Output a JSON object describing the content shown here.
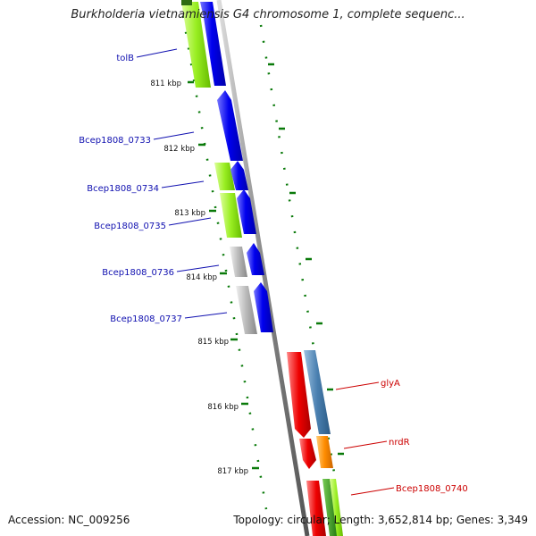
{
  "map": {
    "title": "Burkholderia vietnamiensis G4 chromosome 1, complete sequenc...",
    "accession_text": "Accession: NC_009256",
    "topology_text": "Topology: circular; Length: 3,652,814 bp; Genes: 3,349",
    "tick_labels": [
      "811 kbp",
      "812 kbp",
      "813 kbp",
      "814 kbp",
      "815 kbp",
      "816 kbp",
      "817 kbp"
    ],
    "left_gene_labels": [
      "tolB",
      "Bcep1808_0733",
      "Bcep1808_0734",
      "Bcep1808_0735",
      "Bcep1808_0736",
      "Bcep1808_0737"
    ],
    "right_gene_labels": [
      "glyA",
      "nrdR",
      "Bcep1808_0740"
    ]
  },
  "colors": {
    "cds_blue": "#0000ee",
    "rna_green": "#99ee22",
    "gray_feature": "#b0b0b0",
    "red_feature": "#ee0000",
    "steelblue_feature": "#4a80b0",
    "orange_feature": "#ff8c00",
    "tick_green": "#0a7a0a",
    "left_label_color": "#1010b0",
    "right_label_color": "#cc0000",
    "backbone": "#888888"
  }
}
